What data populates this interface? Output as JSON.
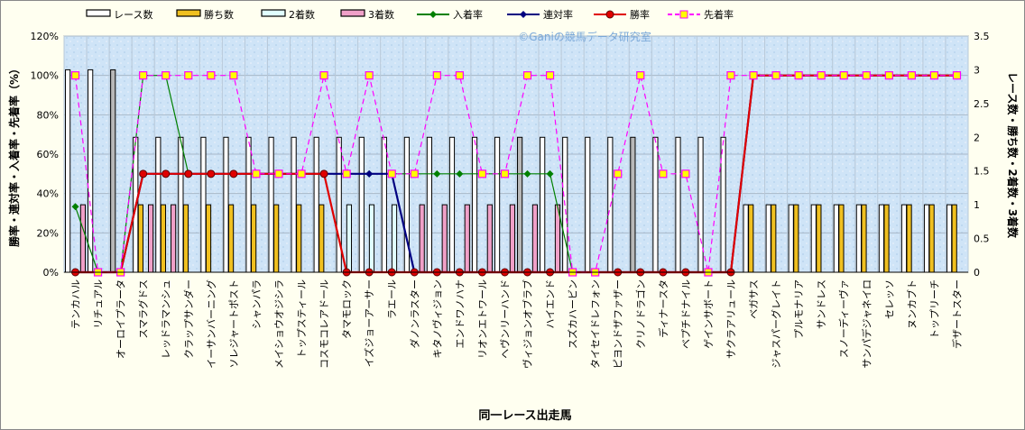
{
  "chart_data": {
    "type": "bar",
    "xlabel": "同一レース出走馬",
    "ylabel_left": "勝率・連対率・入着率・先着率（%）",
    "ylabel_right": "レース数・勝ち数・2着数・3着数",
    "watermark": "©Ganiの競馬データ研究室",
    "y_left_ticks": [
      "0%",
      "20%",
      "40%",
      "60%",
      "80%",
      "100%",
      "120%"
    ],
    "y_right_ticks": [
      "0",
      "0.5",
      "1",
      "1.5",
      "2",
      "2.5",
      "3",
      "3.5"
    ],
    "ylim_left": [
      0,
      120
    ],
    "ylim_right": [
      0,
      3.5
    ],
    "grid": true,
    "legend_position": "top",
    "categories": [
      "テンカハル",
      "リチュアル",
      "オーロイプラータ",
      "スマラグドス",
      "レッドラマンシュ",
      "クラップサンダー",
      "イーサンバーニング",
      "ソレジャートポスト",
      "シャンパラ",
      "メイショウオジシラ",
      "トップスティール",
      "コスモコレアドール",
      "タマモロック",
      "イズジョーアーサー",
      "ラエール",
      "ダノンラスター",
      "キタノヴィジョン",
      "エンドワノハナ",
      "リオンエトワール",
      "ヘヴンリーハンド",
      "ヴィジョンオブラブ",
      "ハイエンド",
      "スズカハービン",
      "タイセイドレフォン",
      "ピヨンドザファザー",
      "クリノドラゴン",
      "ディナースタ",
      "ベプチドナイル",
      "ゲインサボート",
      "サクラアリュール",
      "ベガサス",
      "ジャスパーグレイト",
      "プルモナリア",
      "サンドレス",
      "スノーディーヴァ",
      "サンパデジャネイロ",
      "セレッソ",
      "ヌンカブト",
      "トップリーチ",
      "デザートスター"
    ],
    "series": [
      {
        "name": "レース数",
        "axis": "right",
        "kind": "bar",
        "color": "#ffffff",
        "values": [
          3,
          3,
          3,
          2,
          2,
          2,
          2,
          2,
          2,
          2,
          2,
          2,
          2,
          2,
          2,
          2,
          2,
          2,
          2,
          2,
          2,
          2,
          2,
          2,
          2,
          2,
          2,
          2,
          2,
          2,
          1,
          1,
          1,
          1,
          1,
          1,
          1,
          1,
          1,
          1
        ]
      },
      {
        "name": "勝ち数",
        "axis": "right",
        "kind": "bar",
        "color": "#f0c020",
        "values": [
          0,
          0,
          0,
          1,
          1,
          1,
          1,
          1,
          1,
          1,
          1,
          1,
          0,
          0,
          0,
          0,
          0,
          0,
          0,
          0,
          0,
          0,
          0,
          0,
          0,
          0,
          0,
          0,
          0,
          0,
          1,
          1,
          1,
          1,
          1,
          1,
          1,
          1,
          1,
          1
        ]
      },
      {
        "name": "2着数",
        "axis": "right",
        "kind": "bar",
        "color": "#e0ffff",
        "values": [
          0,
          0,
          0,
          0,
          0,
          0,
          0,
          0,
          0,
          0,
          0,
          0,
          1,
          1,
          1,
          0,
          0,
          0,
          0,
          0,
          0,
          0,
          0,
          0,
          0,
          0,
          0,
          0,
          0,
          0,
          0,
          0,
          0,
          0,
          0,
          0,
          0,
          0,
          0,
          0
        ]
      },
      {
        "name": "3着数",
        "axis": "right",
        "kind": "bar",
        "color": "#f0a0c8",
        "values": [
          1,
          0,
          0,
          1,
          1,
          0,
          0,
          0,
          0,
          0,
          0,
          0,
          0,
          0,
          0,
          1,
          1,
          1,
          1,
          1,
          1,
          1,
          0,
          0,
          0,
          0,
          0,
          0,
          0,
          0,
          0,
          0,
          0,
          0,
          0,
          0,
          0,
          0,
          0,
          0
        ]
      },
      {
        "name": "入着率",
        "axis": "left",
        "kind": "line",
        "color": "#008000",
        "values": [
          33.3,
          0,
          0,
          100,
          100,
          50,
          50,
          50,
          50,
          50,
          50,
          50,
          50,
          50,
          50,
          50,
          50,
          50,
          50,
          50,
          50,
          50,
          0,
          0,
          0,
          0,
          0,
          0,
          0,
          0,
          100,
          100,
          100,
          100,
          100,
          100,
          100,
          100,
          100,
          100
        ]
      },
      {
        "name": "連対率",
        "axis": "left",
        "kind": "line",
        "color": "#000080",
        "values": [
          0,
          0,
          0,
          50,
          50,
          50,
          50,
          50,
          50,
          50,
          50,
          50,
          50,
          50,
          50,
          0,
          0,
          0,
          0,
          0,
          0,
          0,
          0,
          0,
          0,
          0,
          0,
          0,
          0,
          0,
          100,
          100,
          100,
          100,
          100,
          100,
          100,
          100,
          100,
          100
        ]
      },
      {
        "name": "勝率",
        "axis": "left",
        "kind": "line",
        "color": "#e00000",
        "values": [
          0,
          0,
          0,
          50,
          50,
          50,
          50,
          50,
          50,
          50,
          50,
          50,
          0,
          0,
          0,
          0,
          0,
          0,
          0,
          0,
          0,
          0,
          0,
          0,
          0,
          0,
          0,
          0,
          0,
          0,
          100,
          100,
          100,
          100,
          100,
          100,
          100,
          100,
          100,
          100
        ]
      },
      {
        "name": "先着率",
        "axis": "left",
        "kind": "line",
        "color": "#ff00ff",
        "values": [
          100,
          0,
          0,
          100,
          100,
          100,
          100,
          100,
          50,
          50,
          50,
          100,
          50,
          100,
          50,
          50,
          100,
          100,
          50,
          50,
          100,
          100,
          0,
          0,
          50,
          100,
          50,
          50,
          0,
          100,
          100,
          100,
          100,
          100,
          100,
          100,
          100,
          100,
          100,
          100
        ]
      }
    ]
  }
}
